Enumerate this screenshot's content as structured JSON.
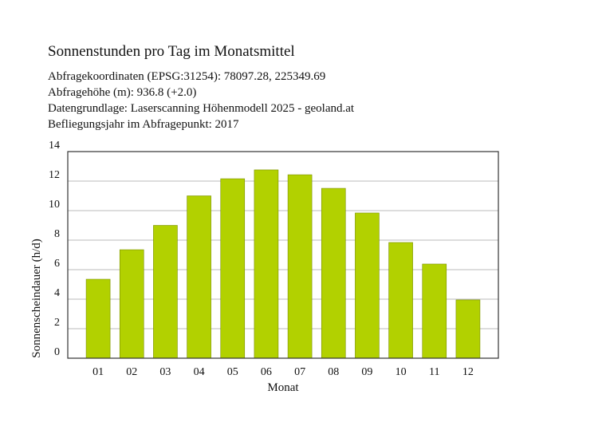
{
  "chart_data": {
    "type": "bar",
    "title": "Sonnenstunden pro Tag im Monatsmittel",
    "subtitle_lines": [
      "Abfragekoordinaten (EPSG:31254): 78097.28, 225349.69",
      "Abfragehöhe (m): 936.8 (+2.0)",
      "Datengrundlage: Laserscanning Höhenmodell 2025 - geoland.at",
      "Befliegungsjahr im Abfragepunkt: 2017"
    ],
    "x_label": "Monat",
    "y_label": "Sonnenscheindauer (h/d)",
    "categories": [
      "01",
      "02",
      "03",
      "04",
      "05",
      "06",
      "07",
      "08",
      "09",
      "10",
      "11",
      "12"
    ],
    "values": [
      5.35,
      7.35,
      9.0,
      11.0,
      12.16,
      12.76,
      12.43,
      11.51,
      9.84,
      7.84,
      6.38,
      3.95
    ],
    "color": "#b2d100",
    "ylim": [
      0,
      14
    ],
    "yticks": [
      0,
      2,
      4,
      6,
      8,
      10,
      12,
      14
    ],
    "grid": true
  }
}
